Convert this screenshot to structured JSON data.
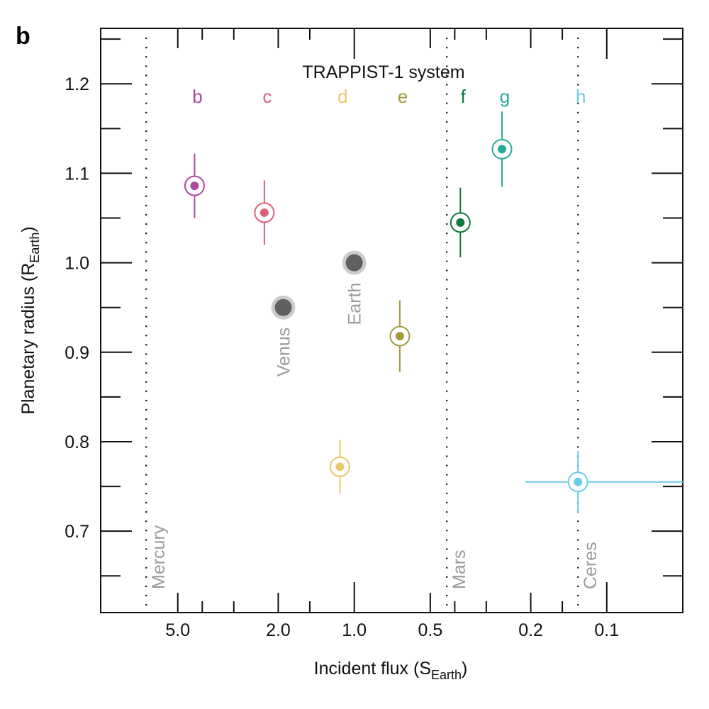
{
  "chart_data": {
    "type": "scatter",
    "panel_label": "b",
    "title": "TRAPPIST-1 system",
    "xlabel": "Incident flux (S",
    "xlabel_sub": "Earth",
    "xlabel_end": ")",
    "ylabel": "Planetary radius (R",
    "ylabel_sub": "Earth",
    "ylabel_end": ")",
    "x_scale": "log",
    "x_reversed": true,
    "xlim": [
      10.1,
      0.05
    ],
    "ylim": [
      0.609,
      1.262
    ],
    "x_ticks": [
      {
        "value": 5.0,
        "label": "5.0"
      },
      {
        "value": 2.0,
        "label": "2.0"
      },
      {
        "value": 1.0,
        "label": "1.0"
      },
      {
        "value": 0.5,
        "label": "0.5"
      },
      {
        "value": 0.2,
        "label": "0.2"
      },
      {
        "value": 0.1,
        "label": "0.1"
      }
    ],
    "x_ticks_decade": [
      1.0,
      0.1
    ],
    "x_ticks_mid": [
      5.0,
      2.0,
      0.5,
      0.2
    ],
    "x_ticks_minor": [
      4.0,
      3.0,
      1.5,
      0.4,
      0.3,
      0.15
    ],
    "y_ticks": [
      {
        "value": 0.7,
        "label": "0.7"
      },
      {
        "value": 0.8,
        "label": "0.8"
      },
      {
        "value": 0.9,
        "label": "0.9"
      },
      {
        "value": 1.0,
        "label": "1.0"
      },
      {
        "value": 1.1,
        "label": "1.1"
      },
      {
        "value": 1.2,
        "label": "1.2"
      }
    ],
    "y_ticks_minor": [
      0.65,
      0.75,
      0.85,
      0.95,
      1.05,
      1.15,
      1.25
    ],
    "grid": false,
    "planets": [
      {
        "name": "b",
        "flux": 4.29,
        "radius": 1.086,
        "radius_err": 0.036,
        "color": "#b0489e"
      },
      {
        "name": "c",
        "flux": 2.27,
        "radius": 1.056,
        "radius_err": 0.036,
        "color": "#dc6073"
      },
      {
        "name": "d",
        "flux": 1.14,
        "radius": 0.772,
        "radius_err": 0.03,
        "color": "#e8c86c"
      },
      {
        "name": "e",
        "flux": 0.66,
        "radius": 0.918,
        "radius_err": 0.04,
        "color": "#a59a3c"
      },
      {
        "name": "f",
        "flux": 0.38,
        "radius": 1.045,
        "radius_err": 0.039,
        "color": "#0f7a3e"
      },
      {
        "name": "g",
        "flux": 0.26,
        "radius": 1.127,
        "radius_err": 0.042,
        "color": "#27ac9c"
      },
      {
        "name": "h",
        "flux": 0.13,
        "radius": 0.755,
        "radius_err": 0.035,
        "flux_err_low": 0.21,
        "flux_err_high": 0.04,
        "color": "#6ccbea"
      }
    ],
    "solar_system_bodies": [
      {
        "name": "Venus",
        "flux": 1.91,
        "radius": 0.95
      },
      {
        "name": "Earth",
        "flux": 1.0,
        "radius": 1.0
      }
    ],
    "reference_lines": [
      {
        "name": "Mercury",
        "flux": 6.67
      },
      {
        "name": "Mars",
        "flux": 0.43
      },
      {
        "name": "Ceres",
        "flux": 0.13
      }
    ],
    "colors": {
      "axis": "#111111",
      "solar_body_fill": "#5f5f5f",
      "solar_body_halo": "#cccccc",
      "reference_label": "#9a9a9a"
    }
  }
}
